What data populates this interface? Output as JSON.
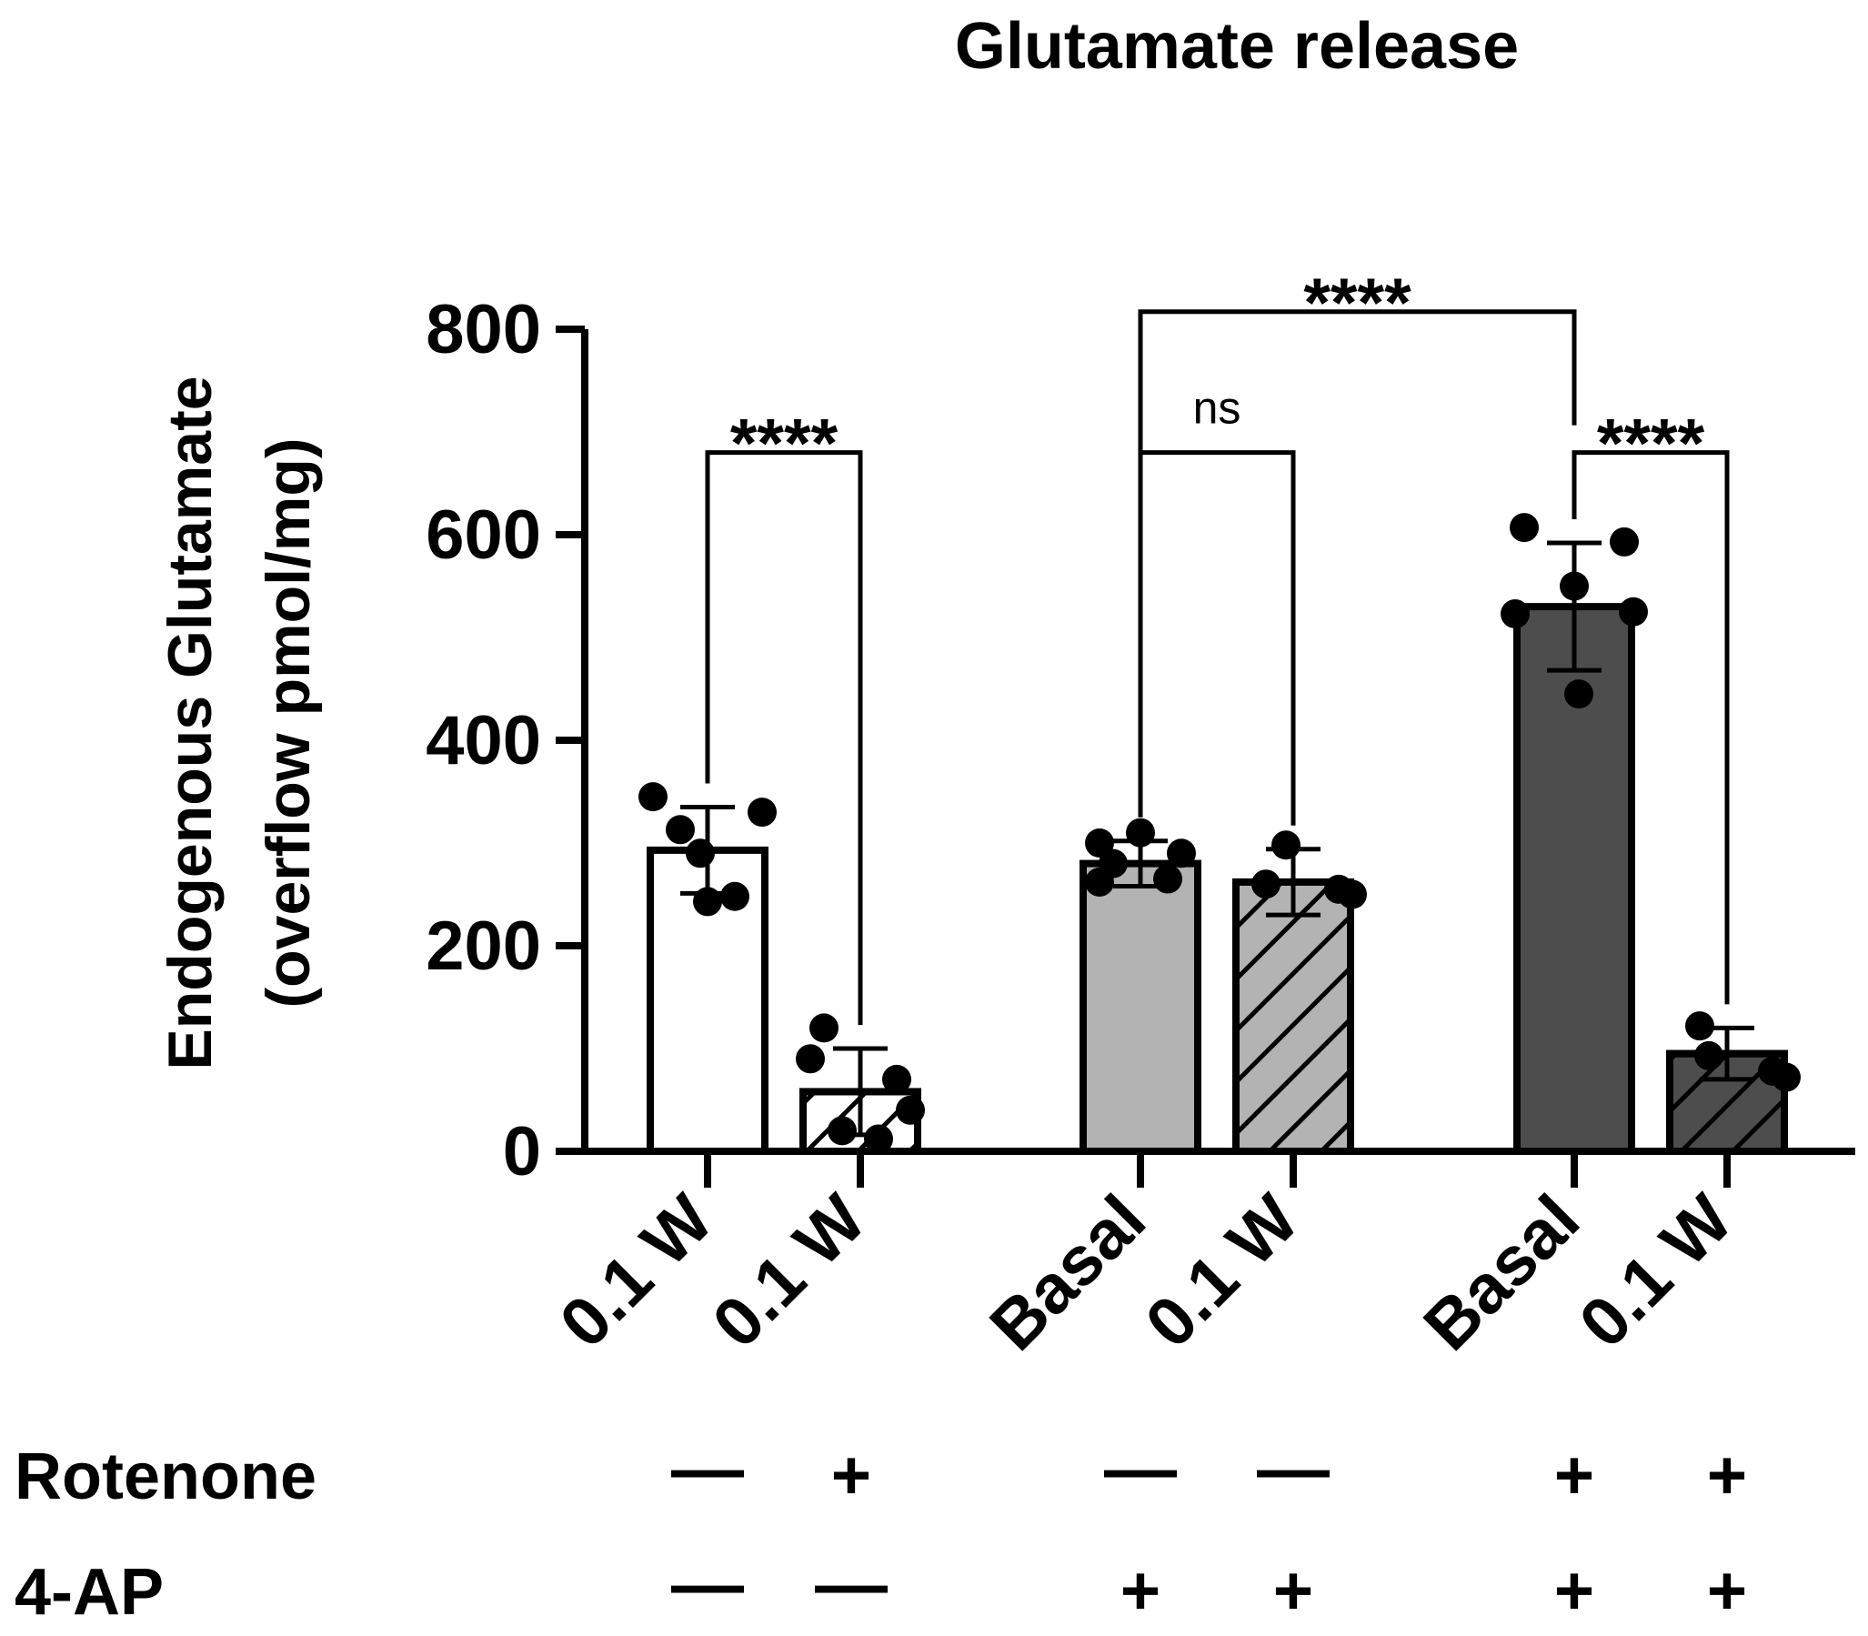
{
  "chart_data": {
    "type": "bar",
    "title": "Glutamate release",
    "ylabel_line1": "Endogenous Glutamate",
    "ylabel_line2": "(overflow pmol/mg)",
    "ylim": [
      0,
      800
    ],
    "yticks": [
      0,
      200,
      400,
      600,
      800
    ],
    "bars": [
      {
        "label": "0.1 W",
        "mean": 293,
        "sd": 42,
        "fill": "#ffffff",
        "hatch": false,
        "points": [
          290,
          345,
          330,
          313,
          248,
          243
        ]
      },
      {
        "label": "0.1 W",
        "mean": 58,
        "sd": 42,
        "fill": "#ffffff",
        "hatch": true,
        "points": [
          120,
          90,
          70,
          40,
          20,
          12
        ]
      },
      {
        "label": "Basal",
        "mean": 280,
        "sd": 22,
        "fill": "#b3b3b3",
        "hatch": false,
        "points": [
          310,
          300,
          290,
          280,
          265,
          262
        ]
      },
      {
        "label": "0.1 W",
        "mean": 262,
        "sd": 32,
        "fill": "#b3b3b3",
        "hatch": true,
        "points": [
          298,
          260,
          255,
          250
        ]
      },
      {
        "label": "Basal",
        "mean": 530,
        "sd": 62,
        "fill": "#4d4d4d",
        "hatch": false,
        "points": [
          607,
          593,
          550,
          523,
          525,
          445
        ]
      },
      {
        "label": "0.1 W",
        "mean": 95,
        "sd": 25,
        "fill": "#4d4d4d",
        "hatch": true,
        "points": [
          122,
          93,
          78,
          72
        ]
      }
    ],
    "comparisons": [
      {
        "from": 0,
        "to": 1,
        "level": 680,
        "label": "****"
      },
      {
        "from": 2,
        "to": 3,
        "level": 680,
        "label": "ns"
      },
      {
        "from": 4,
        "to": 5,
        "level": 680,
        "label": "****"
      },
      {
        "from": 2,
        "to": 4,
        "level": 817,
        "label": "****"
      }
    ],
    "conditions": [
      {
        "name": "Rotenone",
        "values": [
          "—",
          "+",
          "—",
          "—",
          "+",
          "+"
        ]
      },
      {
        "name": "4-AP",
        "values": [
          "—",
          "—",
          "+",
          "+",
          "+",
          "+"
        ]
      }
    ]
  }
}
